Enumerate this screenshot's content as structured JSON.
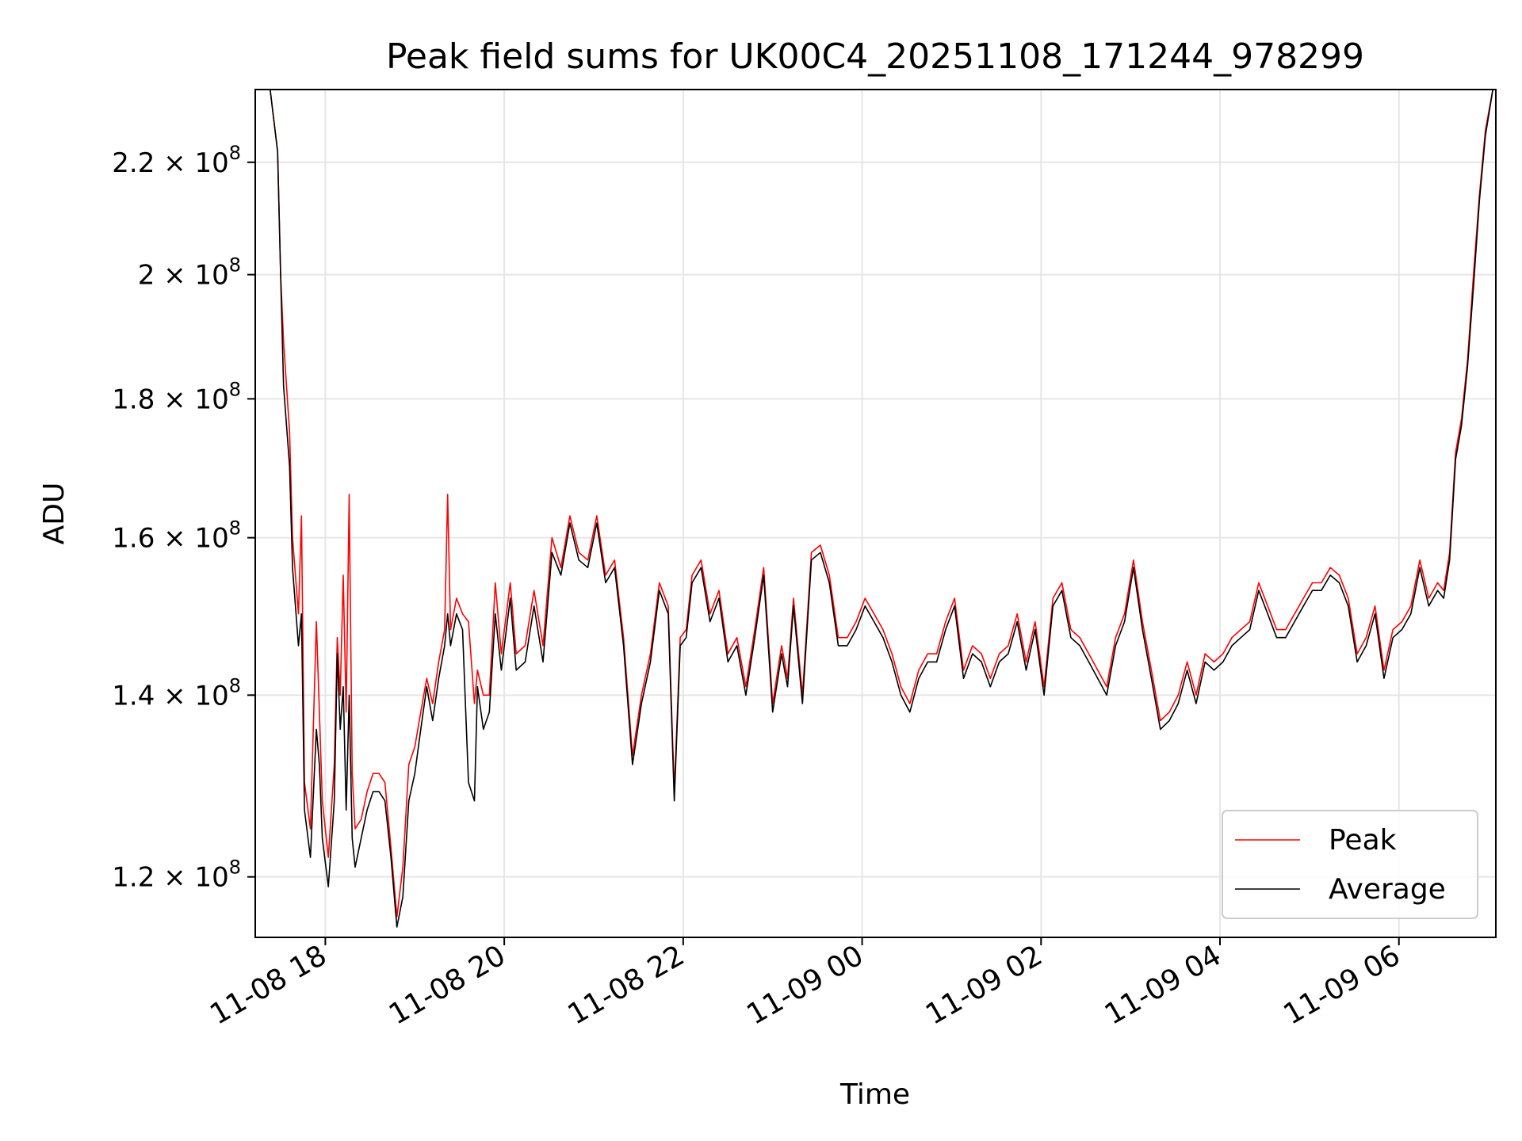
{
  "chart_data": {
    "type": "line",
    "title": "Peak field sums for UK00C4_20251108_171244_978299",
    "xlabel": "Time",
    "ylabel": "ADU",
    "y_scale": "log",
    "grid": true,
    "legend_position": "lower-right",
    "x_tick_labels": [
      "11-08 18",
      "11-08 20",
      "11-08 22",
      "11-09 00",
      "11-09 02",
      "11-09 04",
      "11-09 06"
    ],
    "x_ticks": [
      "2025-11-08 18:00",
      "2025-11-08 20:00",
      "2025-11-08 22:00",
      "2025-11-09 00:00",
      "2025-11-09 02:00",
      "2025-11-09 04:00",
      "2025-11-09 06:00"
    ],
    "xlim": [
      "2025-11-08 17:13",
      "2025-11-09 07:05"
    ],
    "y_tick_labels": [
      "1.2",
      "1.4",
      "1.6",
      "1.8",
      "2",
      "2.2"
    ],
    "y_tick_values": [
      120000000,
      140000000,
      160000000,
      180000000,
      200000000,
      220000000
    ],
    "y_tick_suffix": "× 10",
    "y_tick_exponent": "8",
    "ylim": [
      114000000,
      234000000
    ],
    "series": [
      {
        "name": "Peak",
        "color": "#ff0000",
        "x": [
          "2025-11-08 17:13",
          "2025-11-08 17:23",
          "2025-11-08 17:28",
          "2025-11-08 17:30",
          "2025-11-08 17:32",
          "2025-11-08 17:36",
          "2025-11-08 17:38",
          "2025-11-08 17:42",
          "2025-11-08 17:44",
          "2025-11-08 17:46",
          "2025-11-08 17:50",
          "2025-11-08 17:54",
          "2025-11-08 17:56",
          "2025-11-08 17:58",
          "2025-11-08 18:02",
          "2025-11-08 18:06",
          "2025-11-08 18:08",
          "2025-11-08 18:10",
          "2025-11-08 18:12",
          "2025-11-08 18:14",
          "2025-11-08 18:16",
          "2025-11-08 18:18",
          "2025-11-08 18:20",
          "2025-11-08 18:24",
          "2025-11-08 18:28",
          "2025-11-08 18:32",
          "2025-11-08 18:36",
          "2025-11-08 18:40",
          "2025-11-08 18:44",
          "2025-11-08 18:48",
          "2025-11-08 18:52",
          "2025-11-08 18:56",
          "2025-11-08 19:00",
          "2025-11-08 19:04",
          "2025-11-08 19:08",
          "2025-11-08 19:12",
          "2025-11-08 19:16",
          "2025-11-08 19:20",
          "2025-11-08 19:22",
          "2025-11-08 19:24",
          "2025-11-08 19:28",
          "2025-11-08 19:32",
          "2025-11-08 19:36",
          "2025-11-08 19:40",
          "2025-11-08 19:42",
          "2025-11-08 19:46",
          "2025-11-08 19:50",
          "2025-11-08 19:54",
          "2025-11-08 19:58",
          "2025-11-08 20:04",
          "2025-11-08 20:08",
          "2025-11-08 20:14",
          "2025-11-08 20:20",
          "2025-11-08 20:26",
          "2025-11-08 20:32",
          "2025-11-08 20:38",
          "2025-11-08 20:44",
          "2025-11-08 20:50",
          "2025-11-08 20:56",
          "2025-11-08 21:02",
          "2025-11-08 21:08",
          "2025-11-08 21:14",
          "2025-11-08 21:20",
          "2025-11-08 21:26",
          "2025-11-08 21:32",
          "2025-11-08 21:38",
          "2025-11-08 21:44",
          "2025-11-08 21:50",
          "2025-11-08 21:54",
          "2025-11-08 21:58",
          "2025-11-08 22:02",
          "2025-11-08 22:06",
          "2025-11-08 22:12",
          "2025-11-08 22:18",
          "2025-11-08 22:24",
          "2025-11-08 22:30",
          "2025-11-08 22:36",
          "2025-11-08 22:42",
          "2025-11-08 22:48",
          "2025-11-08 22:54",
          "2025-11-08 23:00",
          "2025-11-08 23:06",
          "2025-11-08 23:10",
          "2025-11-08 23:14",
          "2025-11-08 23:20",
          "2025-11-08 23:26",
          "2025-11-08 23:32",
          "2025-11-08 23:38",
          "2025-11-08 23:44",
          "2025-11-08 23:50",
          "2025-11-08 23:56",
          "2025-11-09 00:02",
          "2025-11-09 00:08",
          "2025-11-09 00:14",
          "2025-11-09 00:20",
          "2025-11-09 00:26",
          "2025-11-09 00:32",
          "2025-11-09 00:38",
          "2025-11-09 00:44",
          "2025-11-09 00:50",
          "2025-11-09 00:56",
          "2025-11-09 01:02",
          "2025-11-09 01:08",
          "2025-11-09 01:14",
          "2025-11-09 01:20",
          "2025-11-09 01:26",
          "2025-11-09 01:32",
          "2025-11-09 01:38",
          "2025-11-09 01:44",
          "2025-11-09 01:50",
          "2025-11-09 01:56",
          "2025-11-09 02:02",
          "2025-11-09 02:08",
          "2025-11-09 02:14",
          "2025-11-09 02:20",
          "2025-11-09 02:26",
          "2025-11-09 02:32",
          "2025-11-09 02:38",
          "2025-11-09 02:44",
          "2025-11-09 02:50",
          "2025-11-09 02:56",
          "2025-11-09 03:02",
          "2025-11-09 03:08",
          "2025-11-09 03:14",
          "2025-11-09 03:20",
          "2025-11-09 03:26",
          "2025-11-09 03:32",
          "2025-11-09 03:38",
          "2025-11-09 03:44",
          "2025-11-09 03:50",
          "2025-11-09 03:56",
          "2025-11-09 04:02",
          "2025-11-09 04:08",
          "2025-11-09 04:14",
          "2025-11-09 04:20",
          "2025-11-09 04:26",
          "2025-11-09 04:32",
          "2025-11-09 04:38",
          "2025-11-09 04:44",
          "2025-11-09 04:50",
          "2025-11-09 04:56",
          "2025-11-09 05:02",
          "2025-11-09 05:08",
          "2025-11-09 05:14",
          "2025-11-09 05:20",
          "2025-11-09 05:26",
          "2025-11-09 05:32",
          "2025-11-09 05:38",
          "2025-11-09 05:44",
          "2025-11-09 05:50",
          "2025-11-09 05:56",
          "2025-11-09 06:02",
          "2025-11-09 06:08",
          "2025-11-09 06:14",
          "2025-11-09 06:20",
          "2025-11-09 06:26",
          "2025-11-09 06:30",
          "2025-11-09 06:34",
          "2025-11-09 06:38",
          "2025-11-09 06:42",
          "2025-11-09 06:46",
          "2025-11-09 06:50",
          "2025-11-09 06:54",
          "2025-11-09 06:58",
          "2025-11-09 07:03"
        ],
        "values": [
          234000000,
          234000000,
          222000000,
          200000000,
          189000000,
          175000000,
          160000000,
          150000000,
          163000000,
          130000000,
          125000000,
          149000000,
          138000000,
          128000000,
          122000000,
          132000000,
          147000000,
          140000000,
          155000000,
          138000000,
          166000000,
          131000000,
          125000000,
          126000000,
          129000000,
          131000000,
          131000000,
          130000000,
          123000000,
          116000000,
          121000000,
          132000000,
          134000000,
          138000000,
          142000000,
          139000000,
          144000000,
          148000000,
          166000000,
          148000000,
          152000000,
          150000000,
          149000000,
          139000000,
          143000000,
          140000000,
          140000000,
          154000000,
          145000000,
          154000000,
          145000000,
          146000000,
          153000000,
          146000000,
          160000000,
          156000000,
          163000000,
          158000000,
          157000000,
          163000000,
          155000000,
          157000000,
          147000000,
          133000000,
          140000000,
          145000000,
          154000000,
          151000000,
          129000000,
          147000000,
          148000000,
          155000000,
          157000000,
          150000000,
          153000000,
          145000000,
          147000000,
          141000000,
          148000000,
          156000000,
          139000000,
          146000000,
          142000000,
          152000000,
          140000000,
          158000000,
          159000000,
          155000000,
          147000000,
          147000000,
          149000000,
          152000000,
          150000000,
          148000000,
          145000000,
          141000000,
          139000000,
          143000000,
          145000000,
          145000000,
          149000000,
          152000000,
          143000000,
          146000000,
          145000000,
          142000000,
          145000000,
          146000000,
          150000000,
          144000000,
          149000000,
          141000000,
          152000000,
          154000000,
          148000000,
          147000000,
          145000000,
          143000000,
          141000000,
          147000000,
          150000000,
          157000000,
          149000000,
          143000000,
          137000000,
          138000000,
          140000000,
          144000000,
          140000000,
          145000000,
          144000000,
          145000000,
          147000000,
          148000000,
          149000000,
          154000000,
          151000000,
          148000000,
          148000000,
          150000000,
          152000000,
          154000000,
          154000000,
          156000000,
          155000000,
          152000000,
          145000000,
          147000000,
          151000000,
          143000000,
          148000000,
          149000000,
          151000000,
          157000000,
          152000000,
          154000000,
          153000000,
          158000000,
          172000000,
          177000000,
          186000000,
          200000000,
          214000000,
          226000000,
          234000000
        ]
      },
      {
        "name": "Average",
        "color": "#000000",
        "x": [
          "2025-11-08 17:13",
          "2025-11-08 17:23",
          "2025-11-08 17:28",
          "2025-11-08 17:30",
          "2025-11-08 17:32",
          "2025-11-08 17:36",
          "2025-11-08 17:38",
          "2025-11-08 17:42",
          "2025-11-08 17:44",
          "2025-11-08 17:46",
          "2025-11-08 17:50",
          "2025-11-08 17:54",
          "2025-11-08 17:56",
          "2025-11-08 17:58",
          "2025-11-08 18:02",
          "2025-11-08 18:06",
          "2025-11-08 18:08",
          "2025-11-08 18:10",
          "2025-11-08 18:12",
          "2025-11-08 18:14",
          "2025-11-08 18:16",
          "2025-11-08 18:18",
          "2025-11-08 18:20",
          "2025-11-08 18:24",
          "2025-11-08 18:28",
          "2025-11-08 18:32",
          "2025-11-08 18:36",
          "2025-11-08 18:40",
          "2025-11-08 18:44",
          "2025-11-08 18:48",
          "2025-11-08 18:52",
          "2025-11-08 18:56",
          "2025-11-08 19:00",
          "2025-11-08 19:04",
          "2025-11-08 19:08",
          "2025-11-08 19:12",
          "2025-11-08 19:16",
          "2025-11-08 19:20",
          "2025-11-08 19:22",
          "2025-11-08 19:24",
          "2025-11-08 19:28",
          "2025-11-08 19:32",
          "2025-11-08 19:36",
          "2025-11-08 19:40",
          "2025-11-08 19:42",
          "2025-11-08 19:46",
          "2025-11-08 19:50",
          "2025-11-08 19:54",
          "2025-11-08 19:58",
          "2025-11-08 20:04",
          "2025-11-08 20:08",
          "2025-11-08 20:14",
          "2025-11-08 20:20",
          "2025-11-08 20:26",
          "2025-11-08 20:32",
          "2025-11-08 20:38",
          "2025-11-08 20:44",
          "2025-11-08 20:50",
          "2025-11-08 20:56",
          "2025-11-08 21:02",
          "2025-11-08 21:08",
          "2025-11-08 21:14",
          "2025-11-08 21:20",
          "2025-11-08 21:26",
          "2025-11-08 21:32",
          "2025-11-08 21:38",
          "2025-11-08 21:44",
          "2025-11-08 21:50",
          "2025-11-08 21:54",
          "2025-11-08 21:58",
          "2025-11-08 22:02",
          "2025-11-08 22:06",
          "2025-11-08 22:12",
          "2025-11-08 22:18",
          "2025-11-08 22:24",
          "2025-11-08 22:30",
          "2025-11-08 22:36",
          "2025-11-08 22:42",
          "2025-11-08 22:48",
          "2025-11-08 22:54",
          "2025-11-08 23:00",
          "2025-11-08 23:06",
          "2025-11-08 23:10",
          "2025-11-08 23:14",
          "2025-11-08 23:20",
          "2025-11-08 23:26",
          "2025-11-08 23:32",
          "2025-11-08 23:38",
          "2025-11-08 23:44",
          "2025-11-08 23:50",
          "2025-11-08 23:56",
          "2025-11-09 00:02",
          "2025-11-09 00:08",
          "2025-11-09 00:14",
          "2025-11-09 00:20",
          "2025-11-09 00:26",
          "2025-11-09 00:32",
          "2025-11-09 00:38",
          "2025-11-09 00:44",
          "2025-11-09 00:50",
          "2025-11-09 00:56",
          "2025-11-09 01:02",
          "2025-11-09 01:08",
          "2025-11-09 01:14",
          "2025-11-09 01:20",
          "2025-11-09 01:26",
          "2025-11-09 01:32",
          "2025-11-09 01:38",
          "2025-11-09 01:44",
          "2025-11-09 01:50",
          "2025-11-09 01:56",
          "2025-11-09 02:02",
          "2025-11-09 02:08",
          "2025-11-09 02:14",
          "2025-11-09 02:20",
          "2025-11-09 02:26",
          "2025-11-09 02:32",
          "2025-11-09 02:38",
          "2025-11-09 02:44",
          "2025-11-09 02:50",
          "2025-11-09 02:56",
          "2025-11-09 03:02",
          "2025-11-09 03:08",
          "2025-11-09 03:14",
          "2025-11-09 03:20",
          "2025-11-09 03:26",
          "2025-11-09 03:32",
          "2025-11-09 03:38",
          "2025-11-09 03:44",
          "2025-11-09 03:50",
          "2025-11-09 03:56",
          "2025-11-09 04:02",
          "2025-11-09 04:08",
          "2025-11-09 04:14",
          "2025-11-09 04:20",
          "2025-11-09 04:26",
          "2025-11-09 04:32",
          "2025-11-09 04:38",
          "2025-11-09 04:44",
          "2025-11-09 04:50",
          "2025-11-09 04:56",
          "2025-11-09 05:02",
          "2025-11-09 05:08",
          "2025-11-09 05:14",
          "2025-11-09 05:20",
          "2025-11-09 05:26",
          "2025-11-09 05:32",
          "2025-11-09 05:38",
          "2025-11-09 05:44",
          "2025-11-09 05:50",
          "2025-11-09 05:56",
          "2025-11-09 06:02",
          "2025-11-09 06:08",
          "2025-11-09 06:14",
          "2025-11-09 06:20",
          "2025-11-09 06:26",
          "2025-11-09 06:30",
          "2025-11-09 06:34",
          "2025-11-09 06:38",
          "2025-11-09 06:42",
          "2025-11-09 06:46",
          "2025-11-09 06:50",
          "2025-11-09 06:54",
          "2025-11-09 06:58",
          "2025-11-09 07:03"
        ],
        "values": [
          234000000,
          234000000,
          222000000,
          200000000,
          182000000,
          170000000,
          156000000,
          146000000,
          150000000,
          127000000,
          122000000,
          136000000,
          132000000,
          124000000,
          119000000,
          128000000,
          145000000,
          136000000,
          141000000,
          127000000,
          140000000,
          124000000,
          121000000,
          124000000,
          127000000,
          129000000,
          129000000,
          128000000,
          122000000,
          115000000,
          118000000,
          128000000,
          131000000,
          136000000,
          141000000,
          137000000,
          142000000,
          146000000,
          150000000,
          146000000,
          150000000,
          148000000,
          130000000,
          128000000,
          141000000,
          136000000,
          138000000,
          150000000,
          143000000,
          152000000,
          143000000,
          144000000,
          151000000,
          144000000,
          158000000,
          155000000,
          162000000,
          157000000,
          156000000,
          162000000,
          154000000,
          156000000,
          146000000,
          132000000,
          139000000,
          144000000,
          153000000,
          150000000,
          128000000,
          146000000,
          147000000,
          154000000,
          156000000,
          149000000,
          152000000,
          144000000,
          146000000,
          140000000,
          147000000,
          155000000,
          138000000,
          145000000,
          141000000,
          151000000,
          139000000,
          157000000,
          158000000,
          154000000,
          146000000,
          146000000,
          148000000,
          151000000,
          149000000,
          147000000,
          144000000,
          140000000,
          138000000,
          142000000,
          144000000,
          144000000,
          148000000,
          151000000,
          142000000,
          145000000,
          144000000,
          141000000,
          144000000,
          145000000,
          149000000,
          143000000,
          148000000,
          140000000,
          151000000,
          153000000,
          147000000,
          146000000,
          144000000,
          142000000,
          140000000,
          146000000,
          149000000,
          156000000,
          148000000,
          142000000,
          136000000,
          137000000,
          139000000,
          143000000,
          139000000,
          144000000,
          143000000,
          144000000,
          146000000,
          147000000,
          148000000,
          153000000,
          150000000,
          147000000,
          147000000,
          149000000,
          151000000,
          153000000,
          153000000,
          155000000,
          154000000,
          151000000,
          144000000,
          146000000,
          150000000,
          142000000,
          147000000,
          148000000,
          150000000,
          156000000,
          151000000,
          153000000,
          152000000,
          157000000,
          171000000,
          176000000,
          185000000,
          198000000,
          213000000,
          225000000,
          234000000
        ]
      }
    ]
  }
}
